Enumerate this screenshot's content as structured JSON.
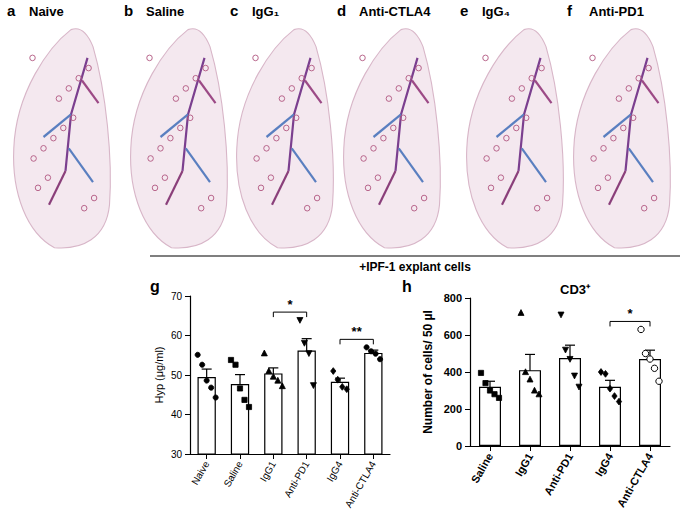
{
  "images": {
    "panels": [
      {
        "letter": "a",
        "label": "Naive"
      },
      {
        "letter": "b",
        "label": "Saline"
      },
      {
        "letter": "c",
        "label": "IgG₁"
      },
      {
        "letter": "d",
        "label": "Anti-CTLA4"
      },
      {
        "letter": "e",
        "label": "IgG₄"
      },
      {
        "letter": "f",
        "label": "Anti-PD1"
      }
    ],
    "caption": "+IPF-1 explant cells"
  },
  "chart_data": [
    {
      "panel_label": "g",
      "type": "bar",
      "y_label": "Hyp (μg/ml)",
      "categories": [
        "Naive",
        "Saline",
        "IgG1",
        "Anti-PD1",
        "IgG4",
        "Anti-CTLA4"
      ],
      "values": [
        49.5,
        47.7,
        50.4,
        56.2,
        48.3,
        55.6
      ],
      "errors": [
        2.0,
        2.4,
        1.4,
        3.0,
        0.9,
        0.7
      ],
      "points": [
        [
          55.1,
          52.6,
          48.6,
          46.8,
          44.3
        ],
        [
          53.8,
          52.6,
          46.6,
          43.7,
          41.9
        ],
        [
          55.5,
          51.0,
          49.6,
          48.6,
          47.2
        ],
        [
          63.9,
          58.1,
          55.5,
          47.4
        ],
        [
          51.0,
          48.8,
          47.0,
          46.4
        ],
        [
          57.0,
          56.0,
          55.4,
          54.0
        ]
      ],
      "ylim": [
        30,
        70
      ],
      "yticks": [
        30,
        40,
        50,
        60,
        70
      ],
      "grid": false,
      "color": "#ffffff",
      "annotations": [
        {
          "from": "IgG1",
          "to": "Anti-PD1",
          "label": "*"
        },
        {
          "from": "IgG4",
          "to": "Anti-CTLA4",
          "label": "**"
        }
      ]
    },
    {
      "panel_label": "h",
      "type": "bar",
      "title": "CD3⁺",
      "y_label": "Number of cells/ 50 µl",
      "categories": [
        "Saline",
        "IgG1",
        "Anti-PD1",
        "IgG4",
        "Anti-CTLA4"
      ],
      "values": [
        320,
        410,
        475,
        320,
        470
      ],
      "errors": [
        30,
        85,
        70,
        35,
        48
      ],
      "points": [
        [
          395,
          340,
          300,
          280,
          260
        ],
        [
          720,
          400,
          360,
          300,
          280
        ],
        [
          710,
          520,
          470,
          380,
          320
        ],
        [
          400,
          390,
          310,
          270,
          240
        ],
        [
          630,
          500,
          470,
          420,
          350
        ]
      ],
      "ylim": [
        0,
        800
      ],
      "yticks": [
        0,
        200,
        400,
        600,
        800
      ],
      "grid": false,
      "color": "#ffffff",
      "annotations": [
        {
          "from": "IgG4",
          "to": "Anti-CTLA4",
          "label": "*"
        }
      ]
    }
  ]
}
